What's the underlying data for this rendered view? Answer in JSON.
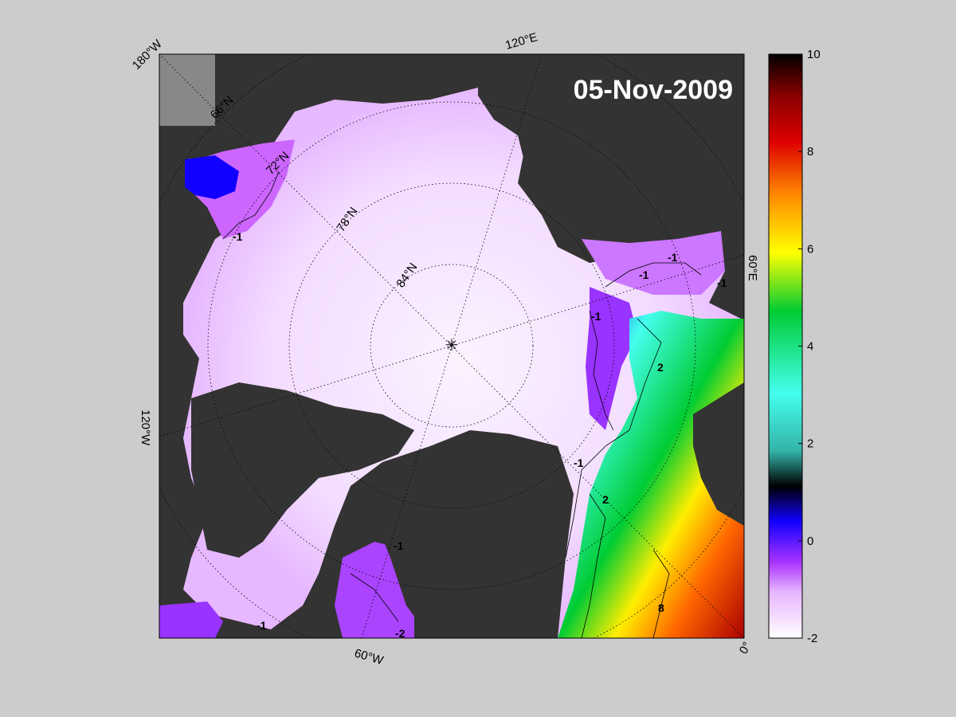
{
  "title": "05-Nov-2009",
  "longitude_labels": [
    "180°W",
    "120°E",
    "60°E",
    "0°",
    "60°W",
    "120°W"
  ],
  "latitude_labels": [
    "66°N",
    "72°N",
    "78°N",
    "84°N"
  ],
  "colorbar": {
    "min": -2,
    "max": 10,
    "ticks": [
      "10",
      "8",
      "6",
      "4",
      "2",
      "0",
      "-2"
    ],
    "colors": [
      "#ffffff",
      "#e6b3ff",
      "#aa33ff",
      "#1100ff",
      "#000000",
      "#33b3a8",
      "#44ffee",
      "#00cc33",
      "#ffff00",
      "#ff8800",
      "#dd0000",
      "#880000",
      "#000000"
    ]
  },
  "contour_labels": [
    "-1",
    "-1",
    "-1",
    "-1",
    "-1",
    "-1",
    "2",
    "-1",
    "2",
    "-1",
    "8",
    "-2"
  ],
  "colors": {
    "background": "#cccccc",
    "land": "#333333",
    "frame": "#000000"
  }
}
